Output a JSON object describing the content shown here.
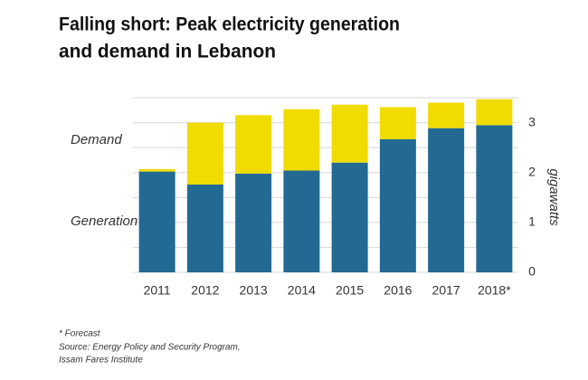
{
  "chart_data": {
    "type": "stacked_bar",
    "title_lines": [
      "Falling short: Peak electricity generation",
      "and demand in Lebanon"
    ],
    "categories": [
      "2011",
      "2012",
      "2013",
      "2014",
      "2015",
      "2016",
      "2017",
      "2018*"
    ],
    "series": [
      {
        "name": "Generation",
        "color": "#236a93",
        "values": [
          2.02,
          1.76,
          1.98,
          2.04,
          2.2,
          2.67,
          2.89,
          2.95
        ]
      },
      {
        "name": "Demand",
        "color": "#f0dc00",
        "values": [
          0.05,
          1.24,
          1.17,
          1.23,
          1.16,
          0.64,
          0.51,
          0.52
        ]
      }
    ],
    "y_axis_label": "gigawatts",
    "ylim": [
      0,
      3.5
    ],
    "yticks": [
      0,
      1,
      2,
      3
    ],
    "ygrid": [
      0,
      0.5,
      1,
      1.5,
      2,
      2.5,
      3,
      3.5
    ],
    "notes": [
      "* Forecast",
      "Source: Energy Policy and Security Program,",
      "Issam Fares Institute"
    ]
  }
}
